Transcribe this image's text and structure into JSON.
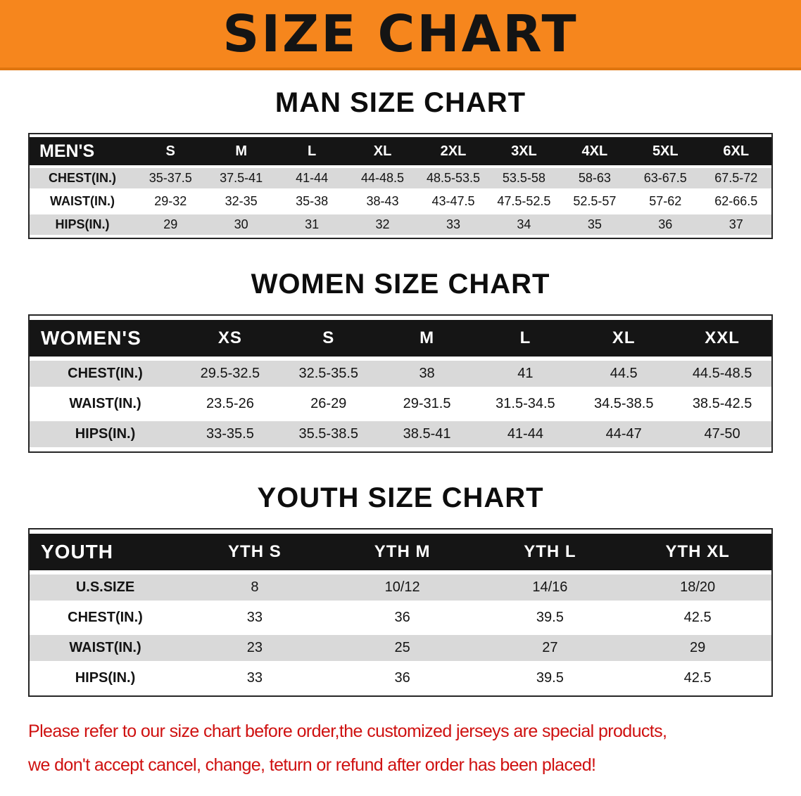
{
  "banner": {
    "title": "SIZE CHART"
  },
  "colors": {
    "banner_bg": "#f6861d",
    "banner_edge": "#df750f",
    "header_bg": "#151515",
    "row_alt": "#d9d9d9",
    "disclaimer_text": "#cf1110"
  },
  "tables": [
    {
      "heading": "MAN SIZE CHART",
      "header": [
        "MEN'S",
        "S",
        "M",
        "L",
        "XL",
        "2XL",
        "3XL",
        "4XL",
        "5XL",
        "6XL"
      ],
      "rows": [
        [
          "CHEST(IN.)",
          "35-37.5",
          "37.5-41",
          "41-44",
          "44-48.5",
          "48.5-53.5",
          "53.5-58",
          "58-63",
          "63-67.5",
          "67.5-72"
        ],
        [
          "WAIST(IN.)",
          "29-32",
          "32-35",
          "35-38",
          "38-43",
          "43-47.5",
          "47.5-52.5",
          "52.5-57",
          "57-62",
          "62-66.5"
        ],
        [
          "HIPS(IN.)",
          "29",
          "30",
          "31",
          "32",
          "33",
          "34",
          "35",
          "36",
          "37"
        ]
      ]
    },
    {
      "heading": "WOMEN SIZE CHART",
      "header": [
        "WOMEN'S",
        "XS",
        "S",
        "M",
        "L",
        "XL",
        "XXL"
      ],
      "rows": [
        [
          "CHEST(IN.)",
          "29.5-32.5",
          "32.5-35.5",
          "38",
          "41",
          "44.5",
          "44.5-48.5"
        ],
        [
          "WAIST(IN.)",
          "23.5-26",
          "26-29",
          "29-31.5",
          "31.5-34.5",
          "34.5-38.5",
          "38.5-42.5"
        ],
        [
          "HIPS(IN.)",
          "33-35.5",
          "35.5-38.5",
          "38.5-41",
          "41-44",
          "44-47",
          "47-50"
        ]
      ]
    },
    {
      "heading": "YOUTH SIZE CHART",
      "header": [
        "YOUTH",
        "YTH S",
        "YTH M",
        "YTH L",
        "YTH XL"
      ],
      "rows": [
        [
          "U.S.SIZE",
          "8",
          "10/12",
          "14/16",
          "18/20"
        ],
        [
          "CHEST(IN.)",
          "33",
          "36",
          "39.5",
          "42.5"
        ],
        [
          "WAIST(IN.)",
          "23",
          "25",
          "27",
          "29"
        ],
        [
          "HIPS(IN.)",
          "33",
          "36",
          "39.5",
          "42.5"
        ]
      ]
    }
  ],
  "disclaimer": {
    "line1": "Please refer to our size chart before order,the customized jerseys are special products,",
    "line2": "we don't accept cancel, change, teturn or refund after order has been placed!"
  }
}
